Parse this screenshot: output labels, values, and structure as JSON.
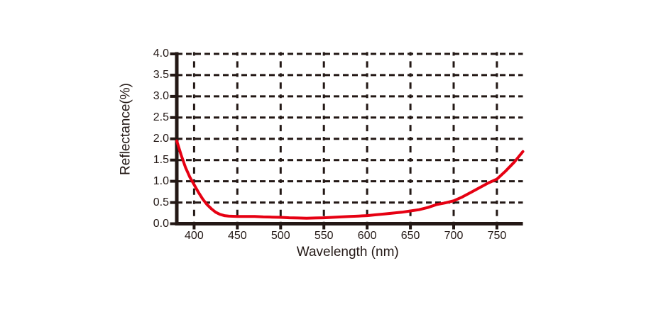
{
  "figure": {
    "background": "#ffffff"
  },
  "chart_data": {
    "type": "line",
    "title": "",
    "xlabel": "Wavelength (nm)",
    "ylabel": "Reflectance(%)",
    "xlim": [
      380,
      780
    ],
    "ylim": [
      0,
      4.0
    ],
    "x_ticks": [
      400,
      450,
      500,
      550,
      600,
      650,
      700,
      750
    ],
    "x_tick_labels": [
      "400",
      "450",
      "500",
      "550",
      "600",
      "650",
      "700",
      "750"
    ],
    "y_ticks": [
      0,
      0.5,
      1.0,
      1.5,
      2.0,
      2.5,
      3.0,
      3.5,
      4.0
    ],
    "y_tick_labels": [
      "0.0",
      "0.5",
      "1.0",
      "1.5",
      "2.0",
      "2.5",
      "3.0",
      "3.5",
      "4.0"
    ],
    "grid": {
      "visible": true,
      "style": "dashed",
      "color": "#231815"
    },
    "legend": {
      "visible": false
    },
    "colors": {
      "line": "#e60012",
      "axis": "#231815",
      "text": "#231815"
    },
    "series": [
      {
        "name": "reflectance",
        "x": [
          380,
          385,
          390,
          395,
          400,
          405,
          410,
          415,
          420,
          425,
          430,
          435,
          440,
          450,
          460,
          470,
          480,
          490,
          500,
          510,
          520,
          530,
          540,
          550,
          560,
          570,
          580,
          590,
          600,
          610,
          620,
          630,
          640,
          650,
          660,
          670,
          680,
          690,
          700,
          710,
          720,
          730,
          740,
          750,
          760,
          770,
          780
        ],
        "y": [
          1.95,
          1.62,
          1.33,
          1.1,
          0.92,
          0.74,
          0.58,
          0.45,
          0.35,
          0.27,
          0.22,
          0.19,
          0.18,
          0.17,
          0.17,
          0.17,
          0.16,
          0.155,
          0.15,
          0.14,
          0.135,
          0.13,
          0.135,
          0.14,
          0.15,
          0.16,
          0.17,
          0.18,
          0.19,
          0.21,
          0.23,
          0.25,
          0.27,
          0.3,
          0.33,
          0.38,
          0.45,
          0.49,
          0.54,
          0.63,
          0.74,
          0.85,
          0.96,
          1.05,
          1.24,
          1.45,
          1.7
        ]
      }
    ]
  }
}
